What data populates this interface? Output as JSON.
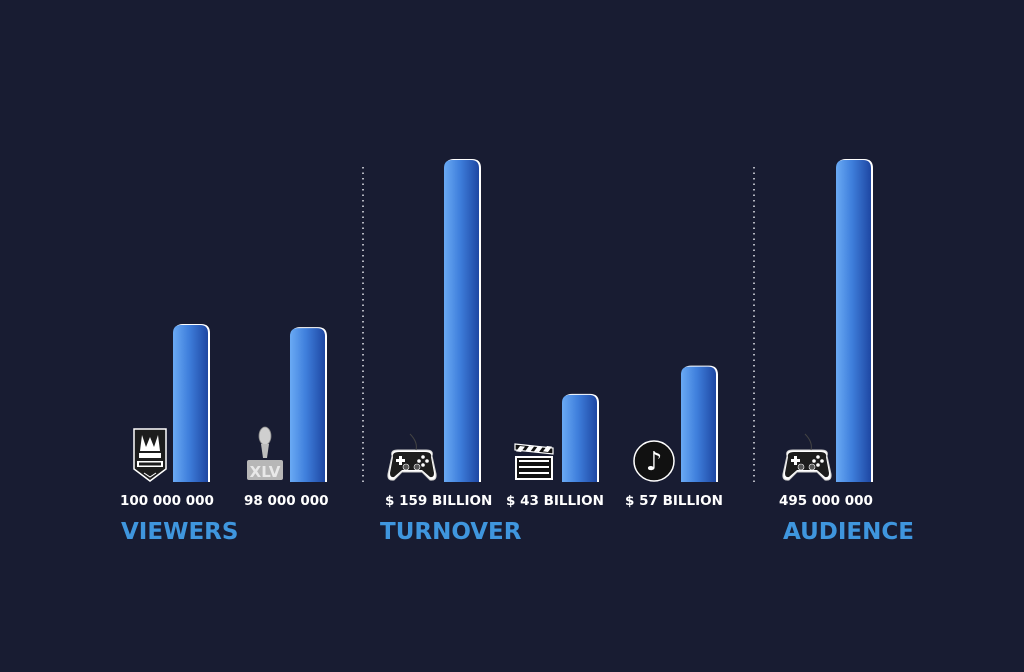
{
  "chart_data": [
    {
      "type": "bar",
      "title": "VIEWERS",
      "categories": [
        "Worlds",
        "Super Bowl XLV"
      ],
      "values": [
        100000000,
        98000000
      ],
      "value_labels": [
        "100 000 000",
        "98 000 000"
      ],
      "icons": [
        "worlds-logo-icon",
        "super-bowl-xlv-trophy-icon"
      ]
    },
    {
      "type": "bar",
      "title": "TURNOVER",
      "categories": [
        "Gaming",
        "Film",
        "Music"
      ],
      "values": [
        159,
        43,
        57
      ],
      "value_labels": [
        "$ 159 BILLION",
        "$ 43 BILLION",
        "$ 57 BILLION"
      ],
      "icons": [
        "gamepad-icon",
        "clapperboard-icon",
        "music-note-icon"
      ]
    },
    {
      "type": "bar",
      "title": "AUDIENCE",
      "categories": [
        "Gaming"
      ],
      "values": [
        495000000
      ],
      "value_labels": [
        "495 000 000"
      ],
      "icons": [
        "gamepad-icon"
      ]
    }
  ],
  "colors": {
    "background": "#181c32",
    "bar_light": "#5a9ff0",
    "bar_dark": "#1f4fae",
    "bar_outline": "#ffffff",
    "category_label": "#3f96de",
    "value_label": "#ffffff"
  },
  "grid": false
}
